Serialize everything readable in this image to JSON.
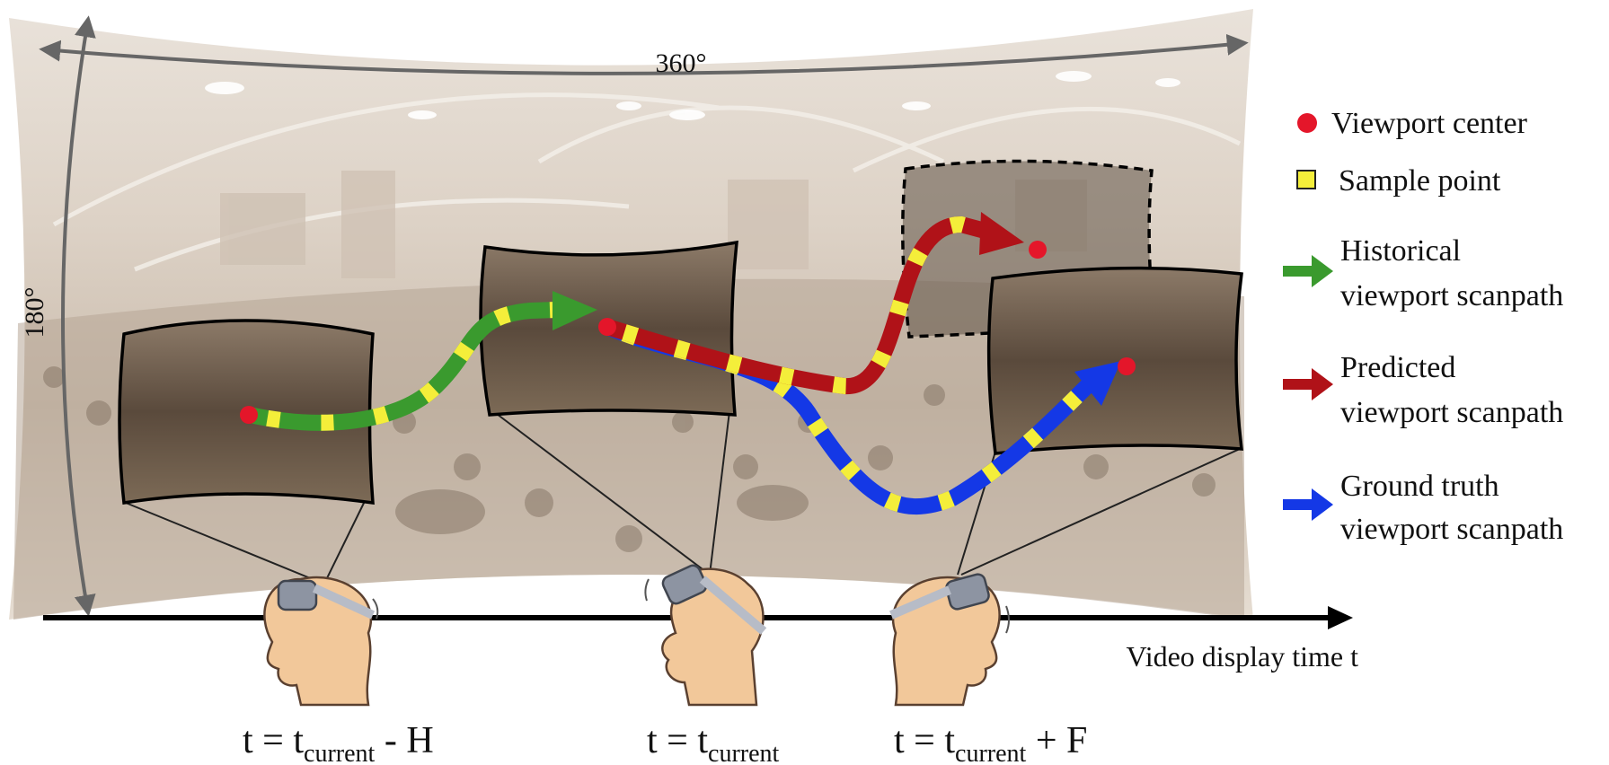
{
  "labels": {
    "horizontal_fov": "360°",
    "vertical_fov": "180°",
    "time_axis": "Video display time t",
    "time_past": {
      "prefix": "t = t",
      "sub": "current",
      "suffix": " - H"
    },
    "time_now": {
      "prefix": "t = t",
      "sub": "current",
      "suffix": ""
    },
    "time_future": {
      "prefix": "t = t",
      "sub": "current",
      "suffix": " + F"
    }
  },
  "legend": {
    "viewport_center": "Viewport center",
    "sample_point": "Sample point",
    "historical": [
      "Historical",
      "viewport scanpath"
    ],
    "predicted": [
      "Predicted",
      "viewport scanpath"
    ],
    "ground_truth": [
      "Ground truth",
      "viewport scanpath"
    ]
  },
  "colors": {
    "historical": "#3a9a2e",
    "predicted": "#b01218",
    "ground_truth": "#1438e6",
    "sample": "#f4ee3a",
    "center": "#e4162a",
    "panorama": "#d8cdc1",
    "skin": "#f2c89a",
    "headset": "#9ea4b0"
  }
}
